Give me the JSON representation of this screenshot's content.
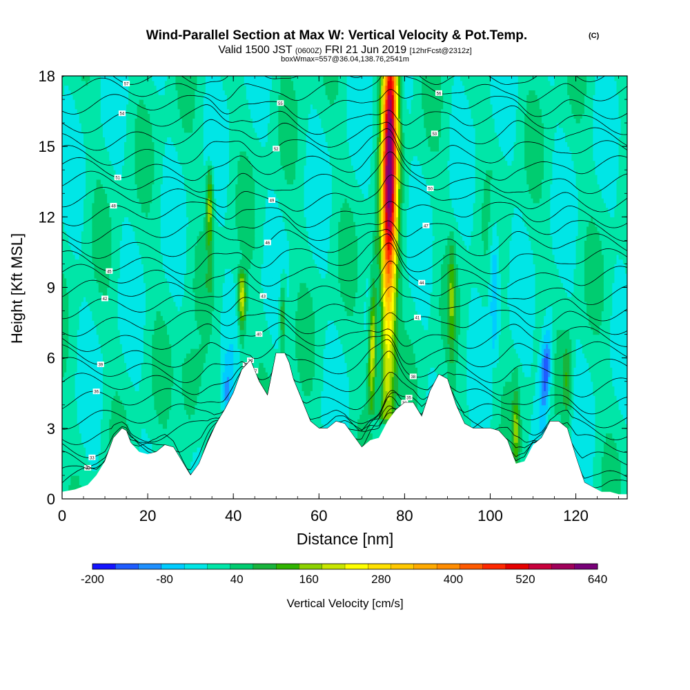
{
  "chart_data": {
    "type": "heatmap",
    "title": "Wind-Parallel Section at Max W: Vertical Velocity & Pot.Temp.",
    "title_mark": "(C)",
    "subtitle_parts": [
      "Valid 1500 JST",
      "(0600Z)",
      "FRI 21 Jun 2019",
      "[12hrFcst@2312z]"
    ],
    "subtitle2": "boxWmax=557@36.04,138.76,2541m",
    "xlabel": "Distance [nm]",
    "ylabel": "Height [Kft MSL]",
    "xlim": [
      0,
      132
    ],
    "ylim": [
      0,
      18
    ],
    "x_ticks": [
      "0",
      "20",
      "40",
      "60",
      "80",
      "100",
      "120"
    ],
    "y_ticks": [
      "0",
      "3",
      "6",
      "9",
      "12",
      "15",
      "18"
    ],
    "colorbar": {
      "label": "Vertical Velocity [cm/s]",
      "range": [
        -200,
        640
      ],
      "step": 40,
      "tick_labels": [
        "-200",
        "-80",
        "40",
        "160",
        "280",
        "400",
        "520",
        "640"
      ],
      "colors": [
        "#1414ff",
        "#1f5cff",
        "#1e90ff",
        "#00ccff",
        "#00e6e6",
        "#00e6a8",
        "#00cc70",
        "#19b43c",
        "#30b400",
        "#8cd200",
        "#c8e600",
        "#ffff00",
        "#ffe100",
        "#ffc800",
        "#ffaa00",
        "#ff8c00",
        "#ff5a00",
        "#ff2800",
        "#e60000",
        "#c8003c",
        "#a0005a",
        "#780078"
      ]
    },
    "terrain": {
      "x": [
        0,
        3,
        6,
        8,
        10,
        12,
        14,
        15,
        16,
        18,
        20,
        22,
        24,
        26,
        28,
        30,
        32,
        34,
        36,
        38,
        40,
        42,
        44,
        46,
        48,
        50,
        52,
        53,
        54,
        56,
        58,
        60,
        62,
        64,
        66,
        68,
        70,
        72,
        74,
        76,
        78,
        80,
        82,
        84,
        86,
        88,
        90,
        92,
        94,
        96,
        98,
        100,
        102,
        104,
        106,
        108,
        110,
        112,
        114,
        116,
        118,
        120,
        122,
        124,
        126,
        128,
        130,
        132
      ],
      "y": [
        0.3,
        0.4,
        0.6,
        1.0,
        1.6,
        2.6,
        3.0,
        2.9,
        2.4,
        2.0,
        1.9,
        2.0,
        2.3,
        2.2,
        1.6,
        1.0,
        1.5,
        2.4,
        3.2,
        3.8,
        4.5,
        5.5,
        5.9,
        5.0,
        4.4,
        6.2,
        6.2,
        5.8,
        5.1,
        4.2,
        3.3,
        3.0,
        3.0,
        3.3,
        3.2,
        2.7,
        2.2,
        2.5,
        2.6,
        3.3,
        3.8,
        4.1,
        4.1,
        3.5,
        4.6,
        5.3,
        5.1,
        4.0,
        3.2,
        3.0,
        3.0,
        3.0,
        2.9,
        2.5,
        1.5,
        1.6,
        2.3,
        2.6,
        3.3,
        3.3,
        3.0,
        1.8,
        0.7,
        0.5,
        0.3,
        0.3,
        0.2,
        0.2
      ]
    },
    "w_features": [
      {
        "x": 76.5,
        "w_min": 3.5,
        "w_max": 18,
        "peak_w": 640,
        "peak_h": 14.5,
        "h_width": 6.5,
        "x_width": 1.8,
        "tilt": 0.05
      },
      {
        "x": 72.5,
        "w_min": 3.8,
        "w_max": 11,
        "peak_w": 250,
        "peak_h": 6.5,
        "h_width": 2.2,
        "x_width": 0.9,
        "tilt": 0.1
      },
      {
        "x": 42,
        "w_min": 5.5,
        "w_max": 9.5,
        "peak_w": 220,
        "peak_h": 8.5,
        "h_width": 1.2,
        "x_width": 0.9,
        "tilt": 0.0
      },
      {
        "x": 34.5,
        "w_min": 9,
        "w_max": 14,
        "peak_w": 180,
        "peak_h": 12.5,
        "h_width": 1.6,
        "x_width": 0.8,
        "tilt": 0.0
      },
      {
        "x": 51.5,
        "w_min": 6,
        "w_max": 9.5,
        "peak_w": 130,
        "peak_h": 7.8,
        "h_width": 1.3,
        "x_width": 0.7,
        "tilt": 0.0
      },
      {
        "x": 91,
        "w_min": 4.5,
        "w_max": 11,
        "peak_w": 120,
        "peak_h": 8.5,
        "h_width": 2.0,
        "x_width": 0.8,
        "tilt": 0.0
      },
      {
        "x": 106,
        "w_min": 1.5,
        "w_max": 5.5,
        "peak_w": 140,
        "peak_h": 3.0,
        "h_width": 1.2,
        "x_width": 0.8,
        "tilt": 0.0
      },
      {
        "x": 118,
        "w_min": 1.5,
        "w_max": 7,
        "peak_w": 110,
        "peak_h": 5.0,
        "h_width": 1.6,
        "x_width": 1.2,
        "tilt": 0.0
      },
      {
        "x": 113,
        "w_min": 3.0,
        "w_max": 8,
        "peak_w": -200,
        "peak_h": 5.5,
        "h_width": 1.6,
        "x_width": 1.4,
        "tilt": 0.3
      },
      {
        "x": 30,
        "w_min": 1.2,
        "w_max": 6,
        "peak_w": 90,
        "peak_h": 4.5,
        "h_width": 2.2,
        "x_width": 2.5,
        "tilt": 0.0
      },
      {
        "x": 38.5,
        "w_min": 3.5,
        "w_max": 6,
        "peak_w": -80,
        "peak_h": 4.5,
        "h_width": 1.0,
        "x_width": 1.0,
        "tilt": 0.0
      },
      {
        "x": 101,
        "w_min": 6,
        "w_max": 13,
        "peak_w": -110,
        "peak_h": 9.5,
        "h_width": 2.5,
        "x_width": 1.2,
        "tilt": 0.0
      }
    ],
    "contours": {
      "count": 28,
      "label_values": [
        "30",
        "31",
        "32",
        "33",
        "34",
        "35",
        "36",
        "37",
        "38",
        "39",
        "40",
        "41",
        "42",
        "43",
        "44",
        "45",
        "46",
        "47",
        "48",
        "49",
        "50",
        "51",
        "52",
        "53",
        "54",
        "55",
        "56",
        "57"
      ]
    }
  }
}
